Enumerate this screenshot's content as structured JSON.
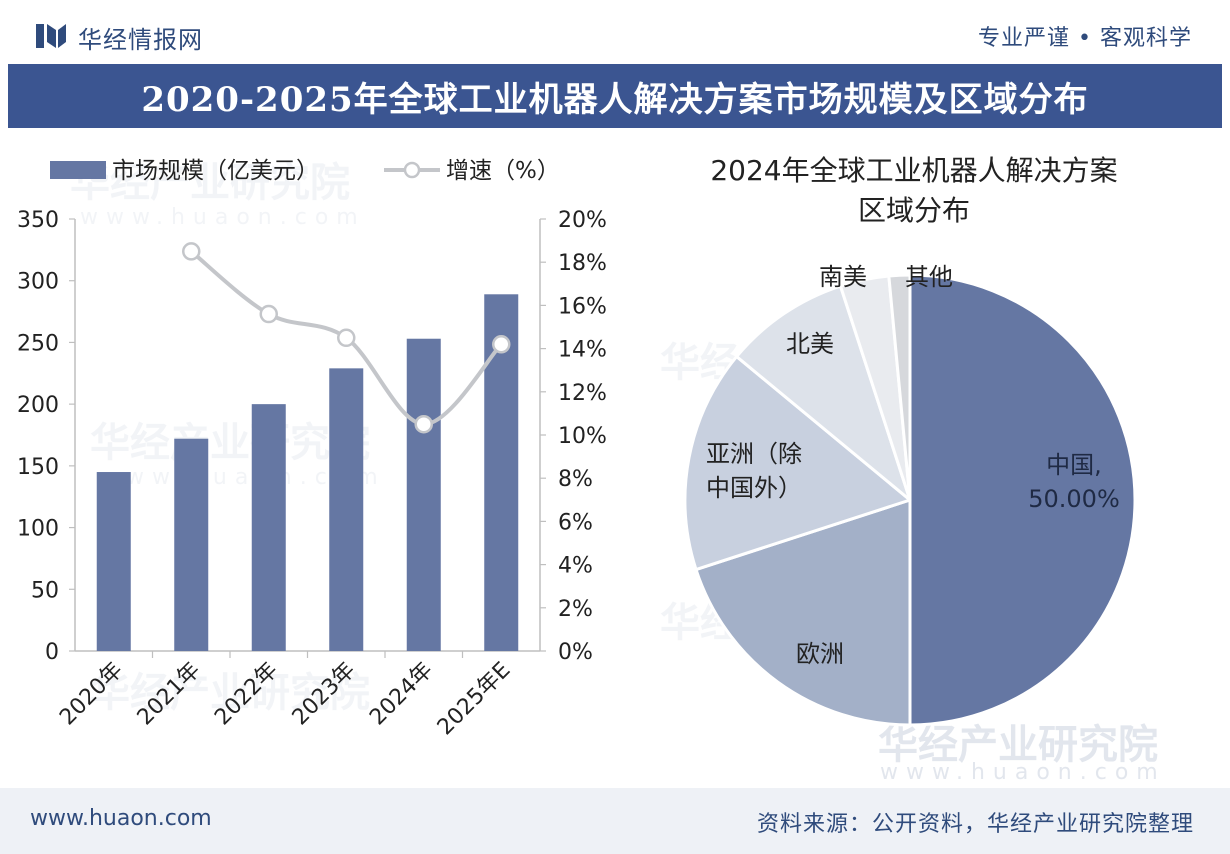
{
  "header": {
    "brand": "华经情报网",
    "slogan": "专业严谨 • 客观科学"
  },
  "title": "2020-2025年全球工业机器人解决方案市场规模及区域分布",
  "footer": {
    "url": "www.huaon.com",
    "source": "资料来源：公开资料，华经产业研究院整理"
  },
  "watermark": {
    "name": "华经产业研究院",
    "url": "www.huaon.com"
  },
  "colors": {
    "primary": "#3b5591",
    "bar": "#6577a3",
    "line": "#c4c6ca"
  },
  "chart_data": [
    {
      "type": "bar",
      "legend": [
        "市场规模（亿美元）",
        "增速（%）"
      ],
      "categories": [
        "2020年",
        "2021年",
        "2022年",
        "2023年",
        "2024年",
        "2025年E"
      ],
      "series": [
        {
          "name": "市场规模（亿美元）",
          "type": "bar",
          "axis": "left",
          "values": [
            145,
            172,
            200,
            229,
            253,
            289
          ]
        },
        {
          "name": "增速（%）",
          "type": "line",
          "axis": "right",
          "values": [
            null,
            18.5,
            15.6,
            14.5,
            10.5,
            14.2
          ]
        }
      ],
      "y_left": {
        "min": 0,
        "max": 350,
        "ticks": [
          "0",
          "50",
          "100",
          "150",
          "200",
          "250",
          "300",
          "350"
        ]
      },
      "y_right": {
        "min": 0,
        "max": 20,
        "ticks": [
          "0%",
          "2%",
          "4%",
          "6%",
          "8%",
          "10%",
          "12%",
          "14%",
          "16%",
          "18%",
          "20%"
        ]
      },
      "legend_position": "top-left",
      "grid": false
    },
    {
      "type": "pie",
      "title_lines": [
        "2024年全球工业机器人解决方案",
        "区域分布"
      ],
      "slices": [
        {
          "label": "中国",
          "label_lines": [
            "中国,",
            "50.00%"
          ],
          "value": 50.0,
          "color": "#6577a3"
        },
        {
          "label": "欧洲",
          "label_lines": [
            "欧洲"
          ],
          "value": 20.0,
          "color": "#a3b0c8"
        },
        {
          "label": "亚洲（除中国外）",
          "label_lines": [
            "亚洲（除",
            "中国外）"
          ],
          "value": 16.0,
          "color": "#c8d0df"
        },
        {
          "label": "北美",
          "label_lines": [
            "北美"
          ],
          "value": 9.0,
          "color": "#dde2ea"
        },
        {
          "label": "南美",
          "label_lines": [
            "南美"
          ],
          "value": 3.5,
          "color": "#e9ebef"
        },
        {
          "label": "其他",
          "label_lines": [
            "其他"
          ],
          "value": 1.5,
          "color": "#d6d8dc"
        }
      ]
    }
  ]
}
